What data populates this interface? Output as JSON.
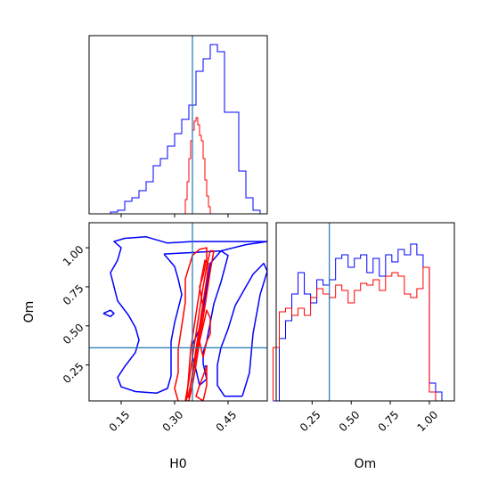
{
  "chart_data": {
    "type": "corner",
    "parameters": [
      "H0",
      "Om"
    ],
    "xlabels": {
      "h0": "H0",
      "om": "Om"
    },
    "ylabels": {
      "om": "Om"
    },
    "truth": {
      "H0": 0.35,
      "Om": 0.36
    },
    "ranges": {
      "H0": [
        0.06,
        0.56
      ],
      "Om": [
        0.02,
        1.16
      ]
    },
    "ticks": {
      "H0": {
        "values": [
          0.15,
          0.3,
          0.45
        ],
        "labels": [
          "0.15",
          "0.30",
          "0.45"
        ]
      },
      "Om": {
        "values": [
          0.25,
          0.5,
          0.75,
          1.0
        ],
        "labels": [
          "0.25",
          "0.50",
          "0.75",
          "1.00"
        ]
      }
    },
    "colors": {
      "blue": "#0000ff",
      "red": "#ff0000",
      "truth": "#1f77b4",
      "frame": "#000000"
    },
    "hist_H0": {
      "blue": {
        "edges": [
          0.12,
          0.14,
          0.16,
          0.18,
          0.2,
          0.22,
          0.24,
          0.26,
          0.28,
          0.3,
          0.32,
          0.34,
          0.36,
          0.38,
          0.4,
          0.42,
          0.44,
          0.46,
          0.48,
          0.5,
          0.52,
          0.54
        ],
        "counts": [
          0.01,
          0.02,
          0.07,
          0.09,
          0.13,
          0.18,
          0.27,
          0.31,
          0.38,
          0.45,
          0.53,
          0.61,
          0.8,
          0.87,
          0.95,
          0.91,
          0.57,
          0.57,
          0.24,
          0.09,
          0.02
        ]
      },
      "red": {
        "edges": [
          0.33,
          0.335,
          0.34,
          0.345,
          0.35,
          0.355,
          0.36,
          0.365,
          0.37,
          0.375,
          0.38,
          0.385,
          0.39,
          0.395,
          0.4
        ],
        "counts": [
          0.08,
          0.18,
          0.31,
          0.41,
          0.47,
          0.52,
          0.54,
          0.5,
          0.44,
          0.41,
          0.31,
          0.19,
          0.1,
          0.04
        ]
      }
    },
    "hist_Om": {
      "blue": {
        "edges": [
          0.0,
          0.04,
          0.08,
          0.12,
          0.16,
          0.2,
          0.24,
          0.28,
          0.32,
          0.36,
          0.4,
          0.44,
          0.48,
          0.52,
          0.56,
          0.6,
          0.64,
          0.68,
          0.72,
          0.76,
          0.8,
          0.84,
          0.88,
          0.92,
          0.96,
          1.0,
          1.04,
          1.08
        ],
        "counts": [
          0.0,
          0.35,
          0.45,
          0.6,
          0.72,
          0.6,
          0.55,
          0.68,
          0.65,
          0.68,
          0.8,
          0.82,
          0.75,
          0.8,
          0.82,
          0.72,
          0.8,
          0.7,
          0.82,
          0.78,
          0.85,
          0.82,
          0.88,
          0.82,
          0.75,
          0.1,
          0.05
        ]
      },
      "red": {
        "edges": [
          0.0,
          0.04,
          0.08,
          0.12,
          0.16,
          0.2,
          0.24,
          0.28,
          0.32,
          0.36,
          0.4,
          0.44,
          0.48,
          0.52,
          0.56,
          0.6,
          0.64,
          0.68,
          0.72,
          0.76,
          0.8,
          0.84,
          0.88,
          0.92,
          0.96,
          1.0,
          1.04
        ],
        "counts": [
          0.3,
          0.5,
          0.52,
          0.48,
          0.52,
          0.48,
          0.58,
          0.63,
          0.6,
          0.58,
          0.65,
          0.62,
          0.55,
          0.62,
          0.66,
          0.65,
          0.68,
          0.62,
          0.7,
          0.72,
          0.7,
          0.6,
          0.58,
          0.63,
          0.75,
          0.05
        ]
      }
    },
    "joint_contours": {
      "blue": [
        [
          [
            0.27,
            0.96
          ],
          [
            0.36,
            0.97
          ],
          [
            0.43,
            0.98
          ],
          [
            0.5,
            1.02
          ],
          [
            0.56,
            1.04
          ],
          [
            0.49,
            1.04
          ],
          [
            0.41,
            1.04
          ],
          [
            0.35,
            1.04
          ],
          [
            0.28,
            1.03
          ],
          [
            0.22,
            1.07
          ],
          [
            0.16,
            1.06
          ],
          [
            0.13,
            1.04
          ],
          [
            0.15,
            1.0
          ],
          [
            0.14,
            0.92
          ],
          [
            0.12,
            0.84
          ],
          [
            0.13,
            0.75
          ],
          [
            0.14,
            0.66
          ],
          [
            0.17,
            0.57
          ],
          [
            0.19,
            0.49
          ],
          [
            0.2,
            0.41
          ],
          [
            0.19,
            0.33
          ],
          [
            0.16,
            0.24
          ],
          [
            0.14,
            0.17
          ],
          [
            0.15,
            0.11
          ],
          [
            0.19,
            0.08
          ],
          [
            0.25,
            0.07
          ],
          [
            0.28,
            0.1
          ],
          [
            0.29,
            0.18
          ],
          [
            0.29,
            0.28
          ],
          [
            0.29,
            0.4
          ],
          [
            0.3,
            0.52
          ],
          [
            0.31,
            0.61
          ],
          [
            0.32,
            0.7
          ],
          [
            0.31,
            0.8
          ],
          [
            0.3,
            0.88
          ],
          [
            0.27,
            0.96
          ]
        ],
        [
          [
            0.49,
            0.05
          ],
          [
            0.51,
            0.2
          ],
          [
            0.52,
            0.45
          ],
          [
            0.54,
            0.7
          ],
          [
            0.56,
            0.85
          ],
          [
            0.55,
            0.9
          ],
          [
            0.52,
            0.83
          ],
          [
            0.5,
            0.75
          ],
          [
            0.47,
            0.63
          ],
          [
            0.45,
            0.48
          ],
          [
            0.43,
            0.36
          ],
          [
            0.42,
            0.25
          ],
          [
            0.42,
            0.12
          ],
          [
            0.44,
            0.05
          ],
          [
            0.49,
            0.05
          ]
        ],
        [
          [
            0.39,
            0.16
          ],
          [
            0.38,
            0.26
          ],
          [
            0.38,
            0.33
          ],
          [
            0.39,
            0.4
          ],
          [
            0.4,
            0.52
          ],
          [
            0.41,
            0.64
          ],
          [
            0.43,
            0.78
          ],
          [
            0.45,
            0.95
          ],
          [
            0.43,
            0.98
          ],
          [
            0.4,
            0.9
          ],
          [
            0.39,
            0.75
          ],
          [
            0.38,
            0.6
          ],
          [
            0.37,
            0.48
          ],
          [
            0.35,
            0.38
          ],
          [
            0.35,
            0.3
          ],
          [
            0.36,
            0.22
          ],
          [
            0.37,
            0.12
          ],
          [
            0.39,
            0.16
          ]
        ],
        [
          [
            0.1,
            0.58
          ],
          [
            0.12,
            0.6
          ],
          [
            0.13,
            0.58
          ],
          [
            0.12,
            0.56
          ],
          [
            0.1,
            0.58
          ]
        ],
        [
          [
            0.385,
            0.24
          ],
          [
            0.39,
            0.245
          ],
          [
            0.39,
            0.235
          ],
          [
            0.385,
            0.24
          ]
        ]
      ],
      "red": [
        [
          [
            0.31,
            0.02
          ],
          [
            0.3,
            0.1
          ],
          [
            0.31,
            0.2
          ],
          [
            0.31,
            0.35
          ],
          [
            0.32,
            0.5
          ],
          [
            0.33,
            0.65
          ],
          [
            0.33,
            0.8
          ],
          [
            0.35,
            0.95
          ],
          [
            0.37,
            0.99
          ],
          [
            0.39,
            1.0
          ],
          [
            0.39,
            0.93
          ],
          [
            0.38,
            0.82
          ],
          [
            0.37,
            0.75
          ],
          [
            0.38,
            0.62
          ],
          [
            0.37,
            0.45
          ],
          [
            0.36,
            0.3
          ],
          [
            0.35,
            0.18
          ],
          [
            0.34,
            0.07
          ],
          [
            0.33,
            0.01
          ],
          [
            0.31,
            0.02
          ]
        ],
        [
          [
            0.33,
            0.02
          ],
          [
            0.34,
            0.15
          ],
          [
            0.35,
            0.3
          ],
          [
            0.36,
            0.45
          ],
          [
            0.37,
            0.6
          ],
          [
            0.38,
            0.75
          ],
          [
            0.39,
            0.88
          ],
          [
            0.4,
            0.98
          ],
          [
            0.41,
            0.98
          ],
          [
            0.4,
            0.85
          ],
          [
            0.39,
            0.7
          ],
          [
            0.38,
            0.55
          ],
          [
            0.37,
            0.4
          ],
          [
            0.36,
            0.25
          ],
          [
            0.35,
            0.12
          ],
          [
            0.34,
            0.02
          ],
          [
            0.33,
            0.02
          ]
        ],
        [
          [
            0.34,
            0.04
          ],
          [
            0.35,
            0.2
          ],
          [
            0.36,
            0.35
          ],
          [
            0.37,
            0.5
          ],
          [
            0.38,
            0.65
          ],
          [
            0.39,
            0.8
          ],
          [
            0.395,
            0.9
          ],
          [
            0.385,
            0.92
          ],
          [
            0.375,
            0.8
          ],
          [
            0.365,
            0.65
          ],
          [
            0.355,
            0.5
          ],
          [
            0.345,
            0.35
          ],
          [
            0.34,
            0.2
          ],
          [
            0.335,
            0.05
          ],
          [
            0.34,
            0.04
          ]
        ],
        [
          [
            0.38,
            0.02
          ],
          [
            0.39,
            0.12
          ],
          [
            0.39,
            0.24
          ],
          [
            0.37,
            0.12
          ],
          [
            0.36,
            0.05
          ],
          [
            0.38,
            0.02
          ]
        ],
        [
          [
            0.38,
            0.3
          ],
          [
            0.39,
            0.4
          ],
          [
            0.4,
            0.45
          ],
          [
            0.4,
            0.55
          ],
          [
            0.39,
            0.6
          ],
          [
            0.38,
            0.5
          ],
          [
            0.37,
            0.4
          ],
          [
            0.38,
            0.3
          ]
        ]
      ]
    }
  }
}
